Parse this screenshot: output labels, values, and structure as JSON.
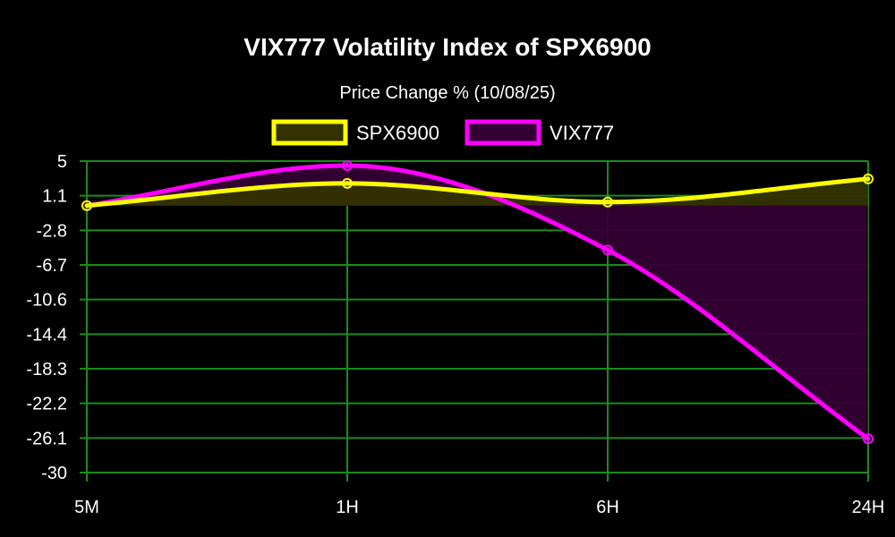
{
  "chart_data": {
    "type": "area",
    "title": "VIX777 Volatility Index of SPX6900",
    "subtitle": "Price Change % (10/08/25)",
    "categories": [
      "5M",
      "1H",
      "6H",
      "24H"
    ],
    "y_ticks": [
      "5",
      "1.1",
      "-2.8",
      "-6.7",
      "-10.6",
      "-14.4",
      "-18.3",
      "-22.2",
      "-26.1",
      "-30"
    ],
    "ylim": [
      -30,
      5
    ],
    "grid": true,
    "legend_position": "top-center",
    "series": [
      {
        "name": "SPX6900",
        "values": [
          0,
          2.5,
          0.4,
          3
        ],
        "line_color": "#ffff00",
        "fill_color": "#333300"
      },
      {
        "name": "VIX777",
        "values": [
          0,
          4.5,
          -5,
          -26.2
        ],
        "line_color": "#ff00ff",
        "fill_color": "#330033"
      }
    ],
    "colors": {
      "background": "#000000",
      "grid": "#1a8c1a",
      "text": "#ffffff"
    }
  }
}
